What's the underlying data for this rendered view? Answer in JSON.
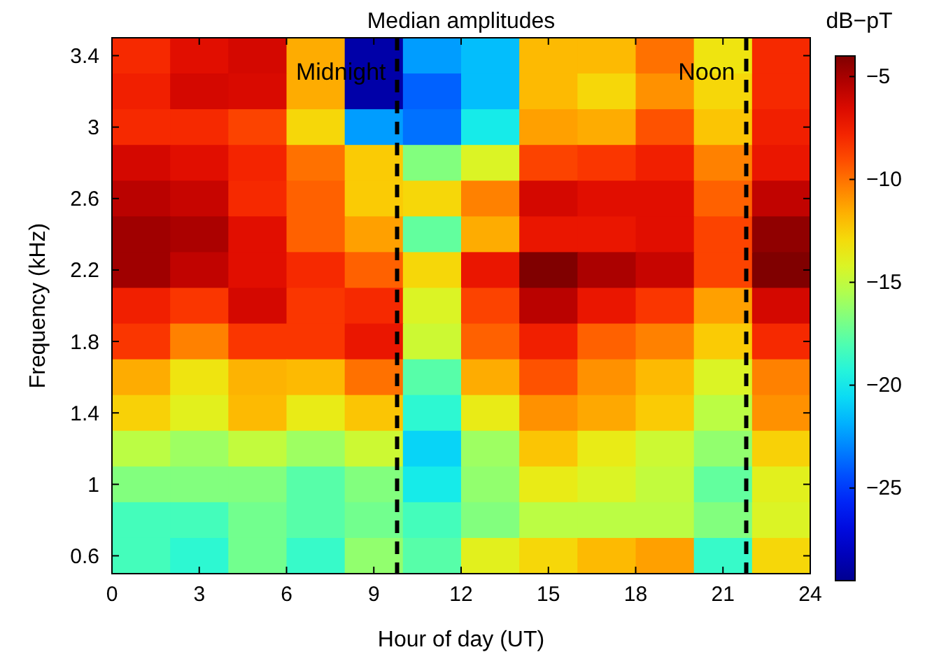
{
  "chart_data": {
    "type": "heatmap",
    "title": "Median amplitudes",
    "xlabel": "Hour of day (UT)",
    "ylabel": "Frequency (kHz)",
    "clabel": "dB−pT",
    "x": [
      1,
      3,
      5,
      7,
      9,
      11,
      13,
      15,
      17,
      19,
      21,
      23
    ],
    "y_categories": [
      "3.4",
      null,
      "3",
      null,
      "2.6",
      null,
      "2.2",
      null,
      "1.8",
      null,
      "1.4",
      null,
      "1",
      null,
      "0.6"
    ],
    "xlim": [
      0,
      24
    ],
    "xticks": [
      0,
      3,
      6,
      9,
      12,
      15,
      18,
      21,
      24
    ],
    "clim": [
      -29.5,
      -4
    ],
    "cticks": [
      {
        "value": -5,
        "label": "−5"
      },
      {
        "value": -10,
        "label": "−10"
      },
      {
        "value": -15,
        "label": "−15"
      },
      {
        "value": -20,
        "label": "−20"
      },
      {
        "value": -25,
        "label": "−25"
      }
    ],
    "cells": [
      [
        -8,
        -6.8,
        -6.3,
        -11.5,
        -28.8,
        -22.4,
        -21.5,
        -11.9,
        -11.9,
        -10,
        -13.3,
        -8
      ],
      [
        -7.6,
        -6.3,
        -6.5,
        -11.5,
        -28.8,
        -23.9,
        -21.5,
        -11.9,
        -12.8,
        -10.8,
        -12.8,
        -8
      ],
      [
        -8,
        -8,
        -8.8,
        -12.8,
        -22.4,
        -23.5,
        -19.9,
        -11.2,
        -11.5,
        -9.2,
        -12.2,
        -7.6
      ],
      [
        -6.3,
        -6.8,
        -7.8,
        -10,
        -12.4,
        -16.7,
        -14.2,
        -8.8,
        -8.4,
        -7.6,
        -10.4,
        -7.2
      ],
      [
        -5.5,
        -5.9,
        -8,
        -9.6,
        -12.4,
        -12.8,
        -10.4,
        -6.3,
        -6.8,
        -6.8,
        -9.6,
        -5.7
      ],
      [
        -4.8,
        -5.1,
        -6.8,
        -9.6,
        -11.2,
        -17.5,
        -11.5,
        -7.2,
        -7.2,
        -6.8,
        -8.8,
        -4.4
      ],
      [
        -4.8,
        -5.7,
        -6.8,
        -8,
        -9.6,
        -12.8,
        -7.2,
        -4,
        -5.1,
        -5.9,
        -8.8,
        -4
      ],
      [
        -7.6,
        -8.4,
        -6.3,
        -8.4,
        -8,
        -14.2,
        -8.8,
        -5.5,
        -7.2,
        -8.4,
        -11.2,
        -6.3
      ],
      [
        -8.4,
        -10.4,
        -8.4,
        -8.4,
        -7.2,
        -14.7,
        -9.6,
        -7.6,
        -9.6,
        -10.4,
        -12.4,
        -8
      ],
      [
        -11.5,
        -13.3,
        -11.7,
        -11.9,
        -10,
        -17.8,
        -11.5,
        -9.2,
        -10.8,
        -11.9,
        -14.2,
        -10.4
      ],
      [
        -12.6,
        -13.9,
        -11.9,
        -13.6,
        -12.2,
        -19,
        -13.6,
        -10.8,
        -11.4,
        -12.4,
        -15.2,
        -10.8
      ],
      [
        -15.2,
        -16,
        -15,
        -16,
        -14.7,
        -20.8,
        -16,
        -12.2,
        -13.6,
        -14.7,
        -16.3,
        -12.6
      ],
      [
        -16.7,
        -16.7,
        -16.7,
        -17.8,
        -16.7,
        -19.9,
        -16.3,
        -13.6,
        -14.2,
        -15,
        -17.5,
        -13.9
      ],
      [
        -18.3,
        -18.3,
        -17.1,
        -17.8,
        -17.1,
        -18.3,
        -16.7,
        -15.2,
        -15.2,
        -15.2,
        -16.7,
        -14.2
      ],
      [
        -18.3,
        -19,
        -17.1,
        -18.7,
        -16.3,
        -17.8,
        -13.9,
        -12.8,
        -11.9,
        -11.2,
        -18.7,
        -12.8
      ]
    ],
    "ref_lines": [
      {
        "axis": "x",
        "value": 9.8,
        "label": "Midnight",
        "color": "#000000",
        "line_style": "dashed"
      },
      {
        "axis": "x",
        "value": 21.8,
        "label": "Noon",
        "color": "#000000",
        "line_style": "dashed"
      }
    ]
  }
}
